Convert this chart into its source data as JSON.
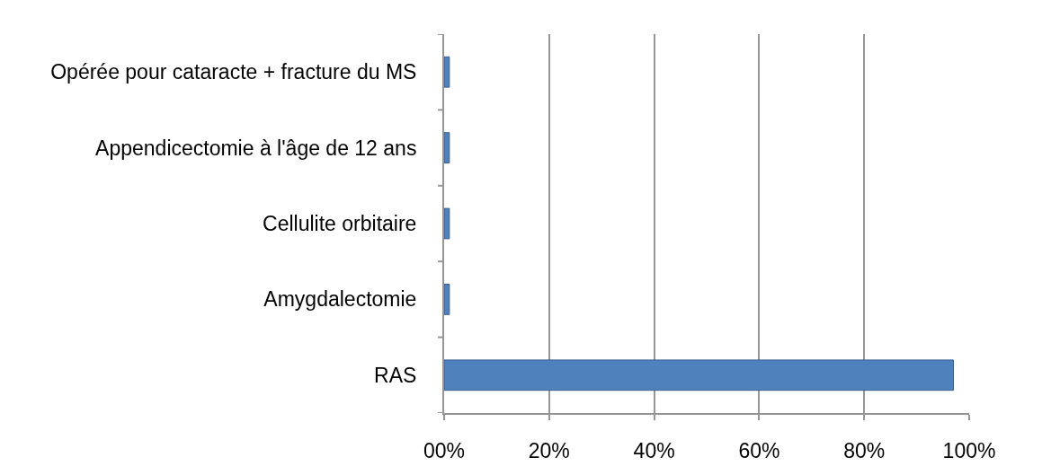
{
  "chart_data": {
    "type": "bar",
    "orientation": "horizontal",
    "categories": [
      "Opérée pour cataracte + fracture du MS",
      "Appendicectomie à l'âge de 12 ans",
      "Cellulite orbitaire",
      "Amygdalectomie",
      "RAS"
    ],
    "values": [
      1,
      1,
      1,
      1,
      97
    ],
    "color": "#4f81bd",
    "xlim": [
      0,
      100
    ],
    "xticks": [
      {
        "value": 0,
        "label": "00%"
      },
      {
        "value": 20,
        "label": "20%"
      },
      {
        "value": 40,
        "label": "40%"
      },
      {
        "value": 60,
        "label": "60%"
      },
      {
        "value": 80,
        "label": "80%"
      },
      {
        "value": 100,
        "label": "100%"
      }
    ],
    "grid": "x"
  }
}
